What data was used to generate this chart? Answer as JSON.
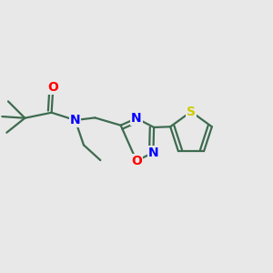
{
  "bg_color": "#e8e8e8",
  "bond_color": "#3d6b50",
  "atom_colors": {
    "N": "#0000ff",
    "O": "#ff0000",
    "S": "#cccc00"
  },
  "font_size": 10,
  "lw": 1.6,
  "figsize": [
    3.0,
    3.0
  ],
  "dpi": 100
}
